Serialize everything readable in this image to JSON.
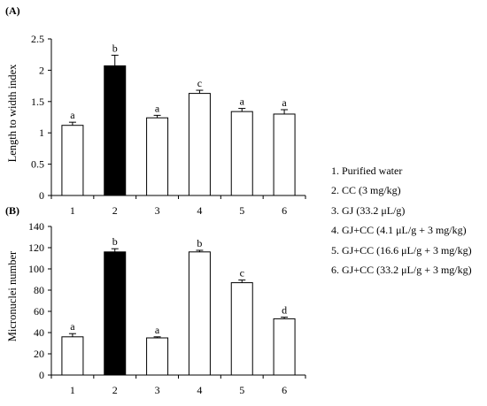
{
  "chart_data": [
    {
      "panel": "(A)",
      "type": "bar",
      "categories": [
        "1",
        "2",
        "3",
        "4",
        "5",
        "6"
      ],
      "values": [
        1.12,
        2.07,
        1.24,
        1.63,
        1.34,
        1.3
      ],
      "errors": [
        0.05,
        0.17,
        0.04,
        0.05,
        0.05,
        0.07
      ],
      "sig_labels": [
        "a",
        "b",
        "a",
        "c",
        "a",
        "a"
      ],
      "ylabel": "Length to width index",
      "ylim": [
        0,
        2.5
      ],
      "yticks": [
        "0",
        "0.5",
        "1",
        "1.5",
        "2",
        "2.5"
      ],
      "yticks_values": [
        0,
        0.5,
        1,
        1.5,
        2,
        2.5
      ],
      "highlight_index": 1
    },
    {
      "panel": "(B)",
      "type": "bar",
      "categories": [
        "1",
        "2",
        "3",
        "4",
        "5",
        "6"
      ],
      "values": [
        36,
        116,
        35,
        116,
        87,
        53
      ],
      "errors": [
        3,
        3,
        1,
        1.5,
        2.5,
        1.5
      ],
      "sig_labels": [
        "a",
        "b",
        "a",
        "b",
        "c",
        "d"
      ],
      "ylabel": "Micronuclei number",
      "ylim": [
        0,
        140
      ],
      "yticks": [
        "0",
        "20",
        "40",
        "60",
        "80",
        "100",
        "120",
        "140"
      ],
      "yticks_values": [
        0,
        20,
        40,
        60,
        80,
        100,
        120,
        140
      ],
      "highlight_index": 1
    }
  ],
  "legend": {
    "items": [
      "1. Purified water",
      "2. CC (3 mg/kg)",
      "3. GJ (33.2 μL/g)",
      "4. GJ+CC (4.1 μL/g + 3 mg/kg)",
      "5. GJ+CC (16.6 μL/g + 3 mg/kg)",
      "6. GJ+CC (33.2 μL/g + 3 mg/kg)"
    ]
  },
  "colors": {
    "highlight_bar": "#000000",
    "bar_fill": "#ffffff",
    "stroke": "#000000"
  }
}
